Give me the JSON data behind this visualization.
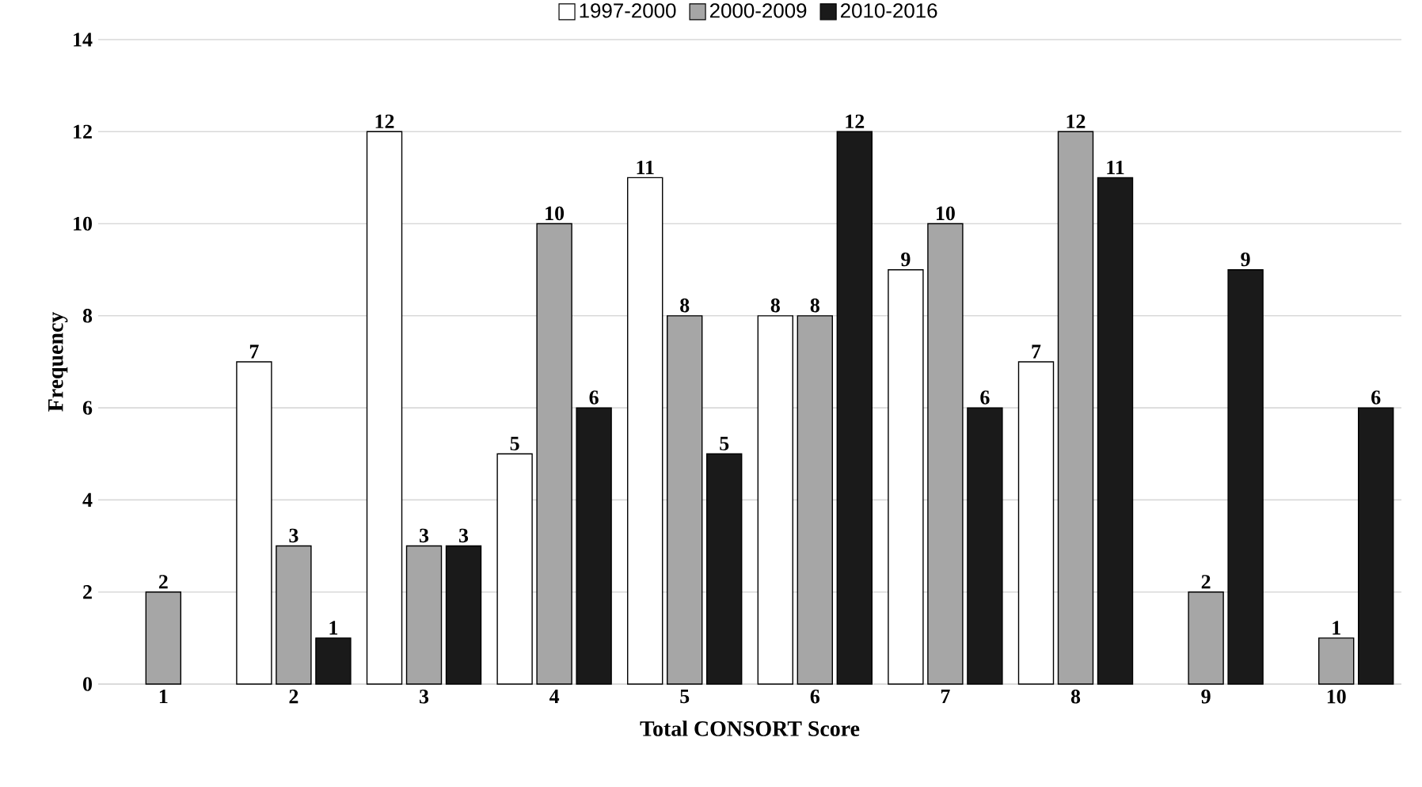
{
  "chart_data": {
    "type": "bar",
    "xlabel": "Total CONSORT Score",
    "ylabel": "Frequency",
    "categories": [
      "1",
      "2",
      "3",
      "4",
      "5",
      "6",
      "7",
      "8",
      "9",
      "10"
    ],
    "series": [
      {
        "name": "1997-2000",
        "color": "#ffffff",
        "values": [
          0,
          7,
          12,
          5,
          11,
          8,
          9,
          7,
          0,
          0
        ],
        "value_labels": [
          null,
          "7",
          "12",
          "5",
          "11",
          "8",
          "9",
          "7",
          null,
          null
        ]
      },
      {
        "name": "2000-2009",
        "color": "#a6a6a6",
        "values": [
          2,
          3,
          3,
          10,
          8,
          8,
          10,
          12,
          2,
          1
        ],
        "value_labels": [
          "2",
          "3",
          "3",
          "10",
          "8",
          "8",
          "10",
          "12",
          "2",
          "1"
        ]
      },
      {
        "name": "2010-2016",
        "color": "#1a1a1a",
        "values": [
          0,
          1,
          3,
          6,
          5,
          12,
          6,
          11,
          9,
          6
        ],
        "value_labels": [
          null,
          "1",
          "3",
          "6",
          "5",
          "12",
          "6",
          "11",
          "9",
          "6"
        ]
      }
    ],
    "ylim": [
      0,
      14
    ],
    "yticks": [
      0,
      2,
      4,
      6,
      8,
      10,
      12,
      14
    ],
    "grid": "y",
    "legend": "top"
  }
}
